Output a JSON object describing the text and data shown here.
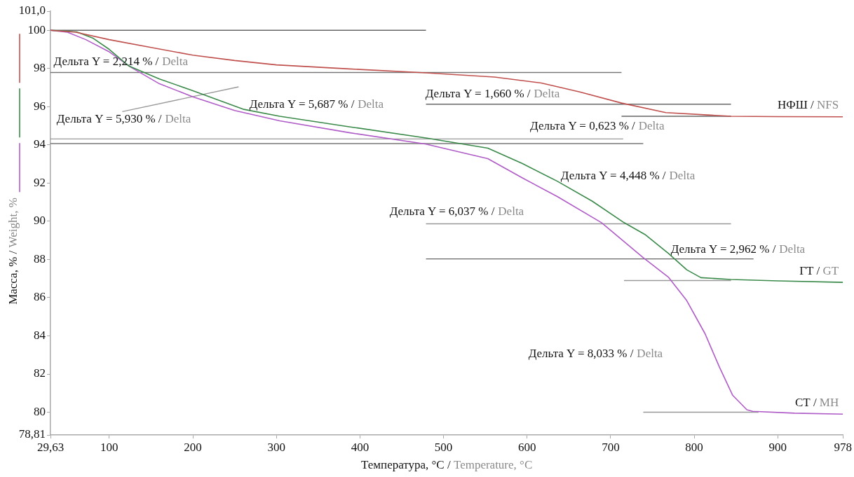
{
  "chart_data": {
    "type": "line",
    "xlabel": "Температура, °C / Temperature, °C",
    "ylabel": "Масса, % / Weight, %",
    "xlim": [
      29.63,
      978
    ],
    "xticks": [
      {
        "value": 29.63,
        "label": "29,63"
      },
      100,
      200,
      300,
      400,
      500,
      600,
      700,
      800,
      900,
      978
    ],
    "ylim": [
      78.81,
      101
    ],
    "yticks": [
      {
        "value": 78.81,
        "label": "78,81"
      },
      80,
      82,
      84,
      86,
      88,
      90,
      92,
      94,
      96,
      98,
      100,
      {
        "value": 101,
        "label": "101,0"
      }
    ],
    "grid": false,
    "marker": "none",
    "line_style": "solid",
    "series": [
      {
        "name": "НФШ / NFS",
        "color": "#c0504d",
        "x": [
          29.63,
          60,
          100,
          150,
          200,
          250,
          300,
          387,
          479,
          561,
          617,
          663,
          713,
          766,
          844,
          900,
          978
        ],
        "values": [
          100,
          99.9,
          99.51,
          99.1,
          98.7,
          98.42,
          98.19,
          97.98,
          97.77,
          97.55,
          97.24,
          96.77,
          96.19,
          95.69,
          95.5,
          95.48,
          95.47
        ]
      },
      {
        "name": "ГТ / GT",
        "color": "#3a8a4a",
        "x": [
          29.63,
          61,
          80,
          100,
          123,
          160,
          200,
          260,
          304,
          387,
          479,
          553,
          594,
          636,
          678,
          716,
          741,
          769,
          791,
          808,
          844,
          900,
          978
        ],
        "values": [
          100,
          99.92,
          99.6,
          99.0,
          98.14,
          97.45,
          96.84,
          95.87,
          95.5,
          94.95,
          94.36,
          93.83,
          93.03,
          92.1,
          91.05,
          89.93,
          89.31,
          88.32,
          87.46,
          87.05,
          86.95,
          86.88,
          86.8
        ]
      },
      {
        "name": "СТ / МН",
        "color": "#b05cc8",
        "x": [
          29.63,
          50,
          72,
          100,
          126,
          160,
          200,
          250,
          304,
          387,
          479,
          553,
          594,
          636,
          689,
          739,
          769,
          791,
          813,
          830,
          846,
          863,
          870,
          920,
          978
        ],
        "values": [
          100,
          99.9,
          99.51,
          98.87,
          98.06,
          97.2,
          96.52,
          95.8,
          95.26,
          94.64,
          94.04,
          93.28,
          92.28,
          91.3,
          89.93,
          88.09,
          87.08,
          85.85,
          84.11,
          82.38,
          80.89,
          80.13,
          80.05,
          79.95,
          79.9
        ]
      },
      {
        "type": "line",
        "color": "#666666",
        "x": [
          29.63,
          479
        ],
        "values": [
          100,
          100
        ]
      },
      {
        "type": "line",
        "color": "#777777",
        "x": [
          29.63,
          713
        ],
        "values": [
          97.79,
          97.79
        ]
      },
      {
        "type": "line",
        "color": "#666666",
        "x": [
          479,
          844
        ],
        "values": [
          96.13,
          96.13
        ]
      },
      {
        "type": "line",
        "color": "#666666",
        "x": [
          713,
          844
        ],
        "values": [
          95.5,
          95.5
        ]
      },
      {
        "type": "line",
        "color": "#999999",
        "x": [
          115.5,
          254.8
        ],
        "values": [
          95.74,
          97.04
        ]
      },
      {
        "type": "line",
        "color": "#999999",
        "x": [
          29.63,
          715
        ],
        "values": [
          94.31,
          94.31
        ]
      },
      {
        "type": "line",
        "color": "#777777",
        "x": [
          29.63,
          739
        ],
        "values": [
          94.07,
          94.07
        ]
      },
      {
        "type": "line",
        "color": "#999999",
        "x": [
          479,
          844
        ],
        "values": [
          89.87,
          89.87
        ]
      },
      {
        "type": "line",
        "color": "#666666",
        "x": [
          479,
          871
        ],
        "values": [
          88.03,
          88.03
        ]
      },
      {
        "type": "line",
        "color": "#999999",
        "x": [
          716,
          844
        ],
        "values": [
          86.9,
          86.9
        ]
      },
      {
        "type": "line",
        "color": "#999999",
        "x": [
          739,
          877
        ],
        "values": [
          80.0,
          80.0
        ]
      }
    ],
    "annotations": [
      "Дельта Y = 2,214 % / Delta",
      "Дельта Y = 5,930 % / Delta",
      "Дельта Y = 5,687 % / Delta",
      "Дельта Y = 1,660 % / Delta",
      "Дельта Y = 0,623 % / Delta",
      "Дельта Y = 4,448 % / Delta",
      "Дельта Y = 6,037 % / Delta",
      "Дельта Y = 2,962 % / Delta",
      "Дельта Y = 8,033 % / Delta"
    ]
  }
}
